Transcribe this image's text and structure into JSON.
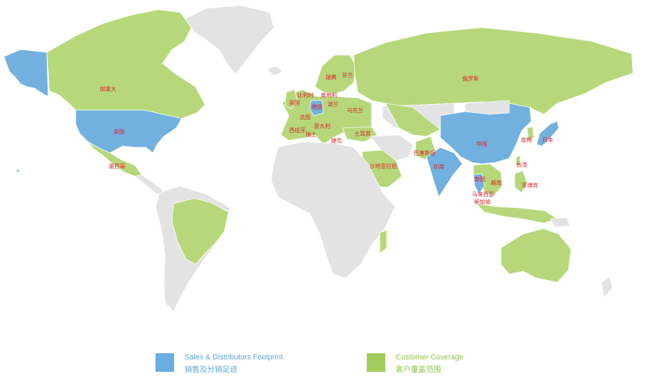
{
  "colors": {
    "footprint": "#6aaedf",
    "coverage": "#a4cc5c",
    "other_land": "#e3e3e3",
    "label": "#e0202a",
    "legend_blue_text": "#5aa7dc",
    "legend_green_text": "#8fc24a"
  },
  "map": {
    "countries": {
      "canada": "加拿大",
      "usa": "美国",
      "mexico": "墨西哥",
      "belgium": "比利时",
      "uk": "英国",
      "germany": "德国",
      "austria": "奥地利",
      "poland": "波兰",
      "sweden": "瑞典",
      "finland": "芬兰",
      "russia": "俄罗斯",
      "france": "法国",
      "ukraine": "乌克兰",
      "spain": "西班牙",
      "italy": "意大利",
      "switzerland": "瑞士",
      "czech": "捷克",
      "turkey": "土耳其",
      "saudi": "沙地亚拉伯",
      "pakistan": "巴基斯坦",
      "india": "印度",
      "china": "中国",
      "korea": "南韩",
      "japan": "日本",
      "taiwan": "台湾",
      "thailand": "泰国",
      "vietnam": "越南",
      "philippines": "菲律宾",
      "malaysia": "马来西亚",
      "singapore": "新加坡"
    }
  },
  "legend": {
    "footprint_en": "Sales & Distributors Footprint",
    "footprint_zh": "销售及分销足迹",
    "coverage_en": "Customer Coverage",
    "coverage_zh": "客户覆盖范围"
  }
}
